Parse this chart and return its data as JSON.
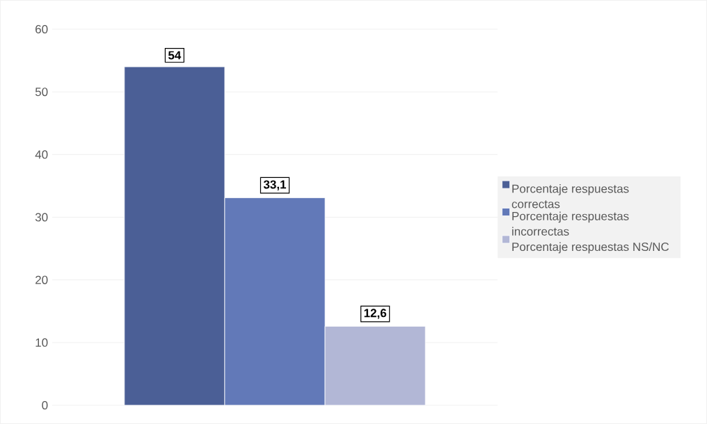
{
  "chart_data": {
    "type": "bar",
    "categories": [
      null
    ],
    "series": [
      {
        "name": "Porcentaje respuestas correctas",
        "color": "#4b5f96",
        "values": [
          54
        ],
        "value_labels": [
          "54"
        ]
      },
      {
        "name": "Porcentaje respuestas incorrectas",
        "color": "#6279b8",
        "values": [
          33.1
        ],
        "value_labels": [
          "33,1"
        ]
      },
      {
        "name": "Porcentaje respuestas NS/NC",
        "color": "#b2b7d6",
        "values": [
          12.6
        ],
        "value_labels": [
          "12,6"
        ]
      }
    ],
    "ylim": [
      0,
      60
    ],
    "yticks": [
      0,
      10,
      20,
      30,
      40,
      50,
      60
    ],
    "grid": "y",
    "legend": "right"
  }
}
